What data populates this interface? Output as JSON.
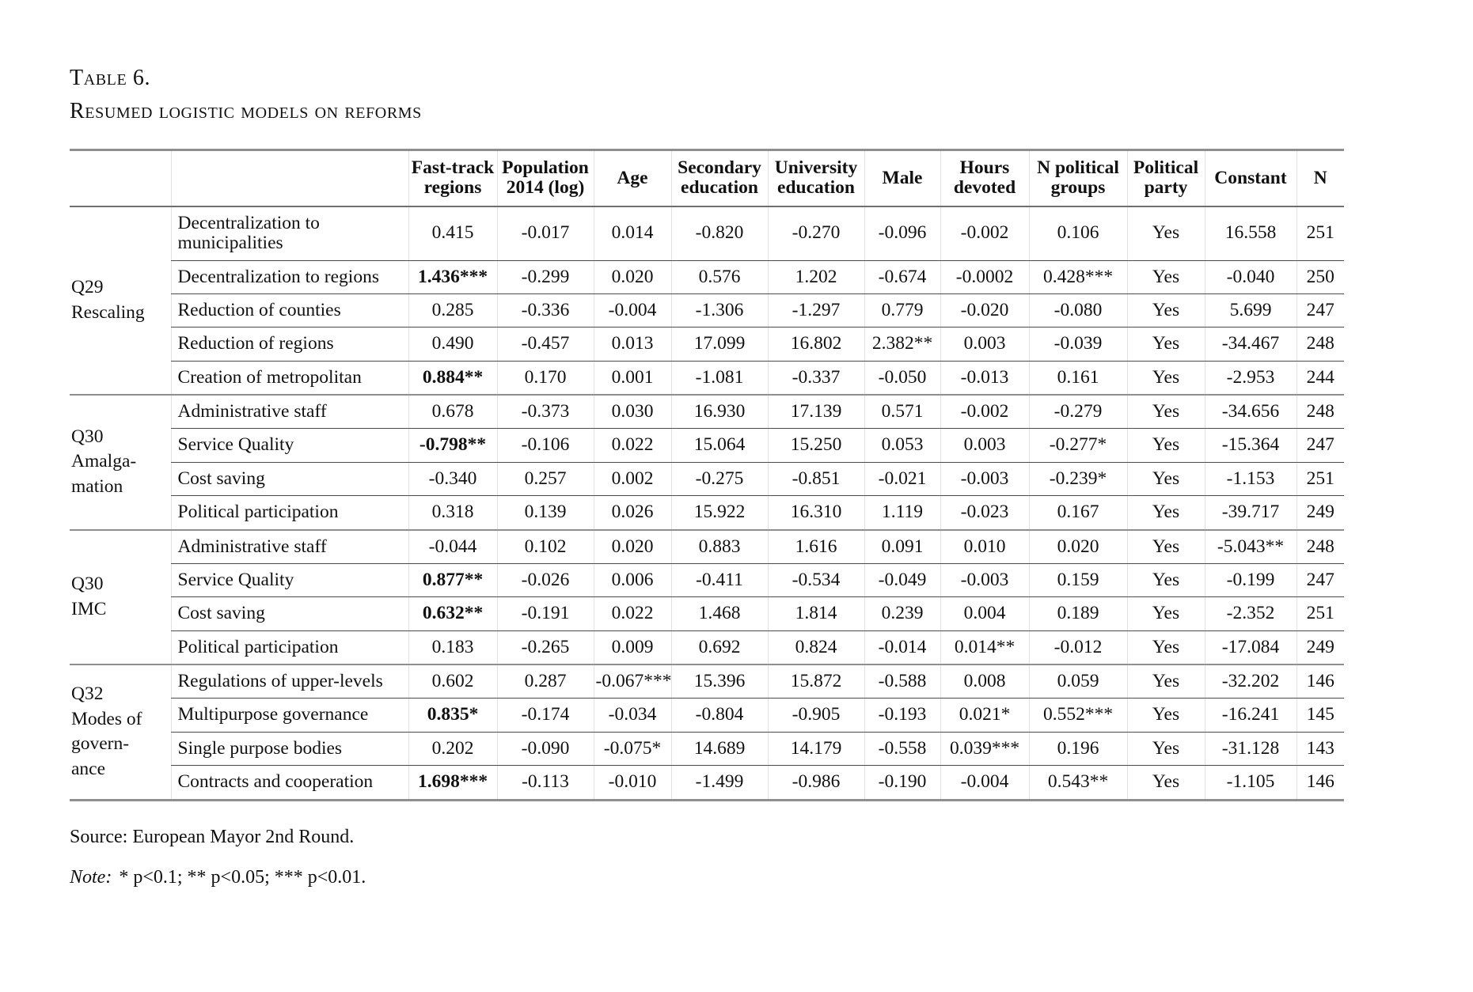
{
  "caption": {
    "line1": "Table 6.",
    "line2": "Resumed logistic models on reforms"
  },
  "colors": {
    "text": "#111111",
    "thick_rule": "#8f8f8f",
    "thin_rule": "#4a4a4a"
  },
  "table": {
    "columns": [
      "Fast-track regions",
      "Population 2014 (log)",
      "Age",
      "Secondary education",
      "University education",
      "Male",
      "Hours devoted",
      "N political groups",
      "Political party",
      "Constant",
      "N"
    ],
    "sections": [
      {
        "group": "Q29\nRescaling",
        "rows": [
          {
            "label": "Decentralization to municipalities",
            "fast_track_bold": false,
            "values": [
              "0.415",
              "-0.017",
              "0.014",
              "-0.820",
              "-0.270",
              "-0.096",
              "-0.002",
              "0.106",
              "Yes",
              "16.558",
              "251"
            ]
          },
          {
            "label": "Decentralization to regions",
            "fast_track_bold": true,
            "values": [
              "1.436***",
              "-0.299",
              "0.020",
              "0.576",
              "1.202",
              "-0.674",
              "-0.0002",
              "0.428***",
              "Yes",
              "-0.040",
              "250"
            ]
          },
          {
            "label": "Reduction of counties",
            "fast_track_bold": false,
            "values": [
              "0.285",
              "-0.336",
              "-0.004",
              "-1.306",
              "-1.297",
              "0.779",
              "-0.020",
              "-0.080",
              "Yes",
              "5.699",
              "247"
            ]
          },
          {
            "label": "Reduction of regions",
            "fast_track_bold": false,
            "values": [
              "0.490",
              "-0.457",
              "0.013",
              "17.099",
              "16.802",
              "2.382**",
              "0.003",
              "-0.039",
              "Yes",
              "-34.467",
              "248"
            ]
          },
          {
            "label": "Creation of metropolitan",
            "fast_track_bold": true,
            "values": [
              "0.884**",
              "0.170",
              "0.001",
              "-1.081",
              "-0.337",
              "-0.050",
              "-0.013",
              "0.161",
              "Yes",
              "-2.953",
              "244"
            ]
          }
        ]
      },
      {
        "group": "Q30\nAmalga-\nmation",
        "rows": [
          {
            "label": "Administrative staff",
            "fast_track_bold": false,
            "values": [
              "0.678",
              "-0.373",
              "0.030",
              "16.930",
              "17.139",
              "0.571",
              "-0.002",
              "-0.279",
              "Yes",
              "-34.656",
              "248"
            ]
          },
          {
            "label": "Service Quality",
            "fast_track_bold": true,
            "values": [
              "-0.798**",
              "-0.106",
              "0.022",
              "15.064",
              "15.250",
              "0.053",
              "0.003",
              "-0.277*",
              "Yes",
              "-15.364",
              "247"
            ]
          },
          {
            "label": "Cost saving",
            "fast_track_bold": false,
            "values": [
              "-0.340",
              "0.257",
              "0.002",
              "-0.275",
              "-0.851",
              "-0.021",
              "-0.003",
              "-0.239*",
              "Yes",
              "-1.153",
              "251"
            ]
          },
          {
            "label": "Political participation",
            "fast_track_bold": false,
            "values": [
              "0.318",
              "0.139",
              "0.026",
              "15.922",
              "16.310",
              "1.119",
              "-0.023",
              "0.167",
              "Yes",
              "-39.717",
              "249"
            ]
          }
        ]
      },
      {
        "group": "Q30\nIMC",
        "rows": [
          {
            "label": "Administrative staff",
            "fast_track_bold": false,
            "values": [
              "-0.044",
              "0.102",
              "0.020",
              "0.883",
              "1.616",
              "0.091",
              "0.010",
              "0.020",
              "Yes",
              "-5.043**",
              "248"
            ]
          },
          {
            "label": "Service Quality",
            "fast_track_bold": true,
            "values": [
              "0.877**",
              "-0.026",
              "0.006",
              "-0.411",
              "-0.534",
              "-0.049",
              "-0.003",
              "0.159",
              "Yes",
              "-0.199",
              "247"
            ]
          },
          {
            "label": "Cost saving",
            "fast_track_bold": true,
            "values": [
              "0.632**",
              "-0.191",
              "0.022",
              "1.468",
              "1.814",
              "0.239",
              "0.004",
              "0.189",
              "Yes",
              "-2.352",
              "251"
            ]
          },
          {
            "label": "Political participation",
            "fast_track_bold": false,
            "values": [
              "0.183",
              "-0.265",
              "0.009",
              "0.692",
              "0.824",
              "-0.014",
              "0.014**",
              "-0.012",
              "Yes",
              "-17.084",
              "249"
            ]
          }
        ]
      },
      {
        "group": "Q32\nModes of\ngovern-\nance",
        "rows": [
          {
            "label": "Regulations of upper-levels",
            "fast_track_bold": false,
            "values": [
              "0.602",
              "0.287",
              "-0.067***",
              "15.396",
              "15.872",
              "-0.588",
              "0.008",
              "0.059",
              "Yes",
              "-32.202",
              "146"
            ]
          },
          {
            "label": "Multipurpose governance",
            "fast_track_bold": true,
            "values": [
              "0.835*",
              "-0.174",
              "-0.034",
              "-0.804",
              "-0.905",
              "-0.193",
              "0.021*",
              "0.552***",
              "Yes",
              "-16.241",
              "145"
            ]
          },
          {
            "label": "Single purpose bodies",
            "fast_track_bold": false,
            "values": [
              "0.202",
              "-0.090",
              "-0.075*",
              "14.689",
              "14.179",
              "-0.558",
              "0.039***",
              "0.196",
              "Yes",
              "-31.128",
              "143"
            ]
          },
          {
            "label": "Contracts and cooperation",
            "fast_track_bold": true,
            "values": [
              "1.698***",
              "-0.113",
              "-0.010",
              "-1.499",
              "-0.986",
              "-0.190",
              "-0.004",
              "0.543**",
              "Yes",
              "-1.105",
              "146"
            ]
          }
        ]
      }
    ]
  },
  "footer": {
    "source": "Source: European Mayor 2nd Round.",
    "note_label": "Note:",
    "note_rest": "* p<0.1; ** p<0.05; *** p<0.01."
  }
}
